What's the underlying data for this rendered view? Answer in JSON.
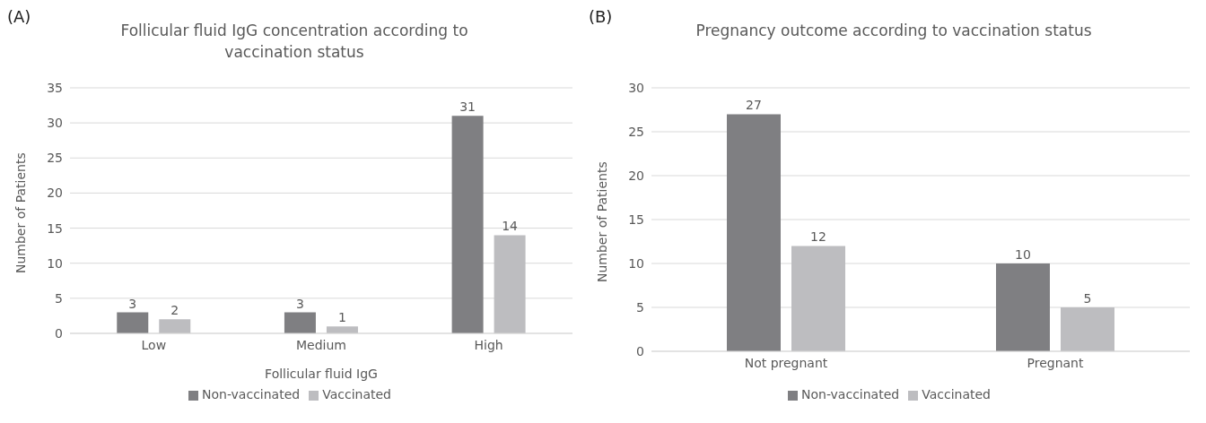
{
  "chart_data": [
    {
      "type": "bar",
      "title": "Follicular fluid IgG concentration according to vaccination status",
      "xlabel": "Follicular fluid IgG",
      "ylabel": "Number of  Patients",
      "annotations": [
        "(A)"
      ],
      "categories": [
        "Low",
        "Medium",
        "High"
      ],
      "series": [
        {
          "name": "Non-vaccinated",
          "color": "#7f7f82",
          "values": [
            3,
            3,
            31
          ]
        },
        {
          "name": "Vaccinated",
          "color": "#bdbdc0",
          "values": [
            2,
            1,
            14
          ]
        }
      ],
      "ylim": [
        0,
        35
      ],
      "yticks": [
        0,
        5,
        10,
        15,
        20,
        25,
        30,
        35
      ],
      "grid": "y",
      "legend": "bottom",
      "data_labels": true
    },
    {
      "type": "bar",
      "title": "Pregnancy outcome according to vaccination status",
      "ylabel": "Number of  Patients",
      "annotations": [
        "(B)"
      ],
      "categories": [
        "Not pregnant",
        "Pregnant"
      ],
      "series": [
        {
          "name": "Non-vaccinated",
          "color": "#7f7f82",
          "values": [
            27,
            10
          ]
        },
        {
          "name": "Vaccinated",
          "color": "#bdbdc0",
          "values": [
            12,
            5
          ]
        }
      ],
      "ylim": [
        0,
        30
      ],
      "yticks": [
        0,
        5,
        10,
        15,
        20,
        25,
        30
      ],
      "grid": "y",
      "legend": "bottom",
      "data_labels": true
    }
  ]
}
